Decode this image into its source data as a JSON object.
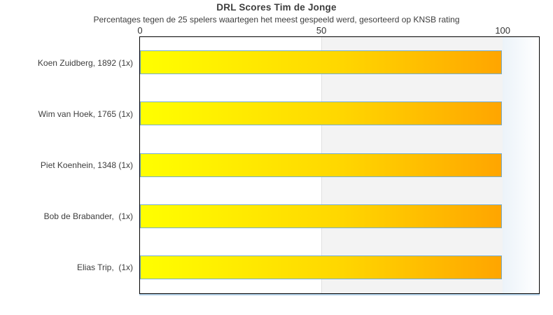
{
  "page": {
    "background": "#ffffff"
  },
  "chart_data": {
    "type": "bar",
    "orientation": "horizontal",
    "title": "DRL Scores Tim de Jonge",
    "subtitle": "Percentages tegen de 25 spelers waartegen het meest gespeeld werd, gesorteerd op KNSB rating",
    "categories": [
      "Koen Zuidberg, 1892 (1x)",
      "Wim van Hoek, 1765 (1x)",
      "Piet Koenhein, 1348 (1x)",
      "Bob de Brabander,  (1x)",
      "Elias Trip,  (1x)"
    ],
    "values": [
      100,
      100,
      100,
      100,
      100
    ],
    "xticks": [
      0,
      50,
      100
    ],
    "xtick_labels": [
      "0",
      "50",
      "100"
    ],
    "xlim": [
      0,
      110
    ],
    "ylabel": "",
    "xlabel": "",
    "legend": "none",
    "grid": "off",
    "background_bands": [
      {
        "from": 0,
        "to": 50,
        "fill": "#ffffff"
      },
      {
        "from": 50,
        "to": 100,
        "fill": "#f3f3f3"
      },
      {
        "from": 100,
        "to": 110,
        "fill": "gradient #ecf3f9 to #ffffff"
      }
    ],
    "colors": {
      "bar_gradient_start": "#ffff00",
      "bar_gradient_end": "#ffa500",
      "bar_border": "#74add1",
      "plot_border": "#000000",
      "axis_underline": "#b5d3ea",
      "text": "#3d3d3d"
    }
  }
}
